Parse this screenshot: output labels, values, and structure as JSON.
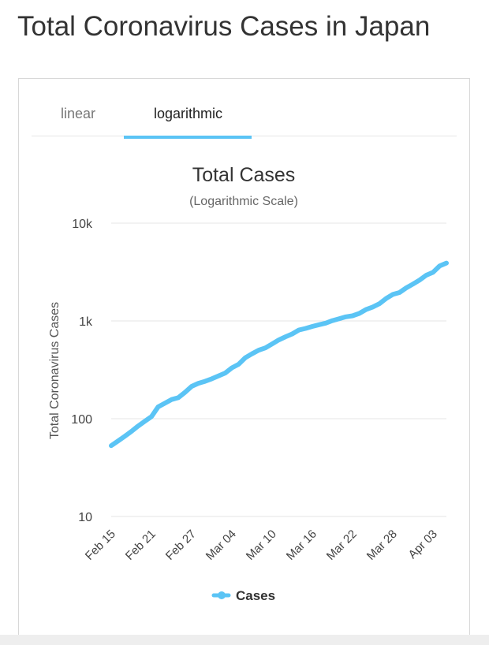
{
  "page": {
    "title": "Total Coronavirus Cases in Japan"
  },
  "tabs": [
    {
      "label": "linear",
      "active": false
    },
    {
      "label": "logarithmic",
      "active": true
    }
  ],
  "colors": {
    "accent": "#5bc4f5",
    "series": "#5bc4f5",
    "grid": "#e6e6e6",
    "text": "#333333"
  },
  "chart_data": {
    "type": "line",
    "title": "Total Cases",
    "subtitle": "(Logarithmic Scale)",
    "xlabel": "",
    "ylabel": "Total Coronavirus Cases",
    "yscale": "log",
    "ylim": [
      10,
      10000
    ],
    "y_ticks": [
      {
        "value": 10,
        "label": "10"
      },
      {
        "value": 100,
        "label": "100"
      },
      {
        "value": 1000,
        "label": "1k"
      },
      {
        "value": 10000,
        "label": "10k"
      }
    ],
    "x_tick_labels": [
      "Feb 15",
      "Feb 21",
      "Feb 27",
      "Mar 04",
      "Mar 10",
      "Mar 16",
      "Mar 22",
      "Mar 28",
      "Apr 03"
    ],
    "grid": true,
    "legend": {
      "position": "bottom-center",
      "label": "Cases"
    },
    "series": [
      {
        "name": "Cases",
        "x": [
          "Feb 15",
          "Feb 16",
          "Feb 17",
          "Feb 18",
          "Feb 19",
          "Feb 20",
          "Feb 21",
          "Feb 22",
          "Feb 23",
          "Feb 24",
          "Feb 25",
          "Feb 26",
          "Feb 27",
          "Feb 28",
          "Feb 29",
          "Mar 01",
          "Mar 02",
          "Mar 03",
          "Mar 04",
          "Mar 05",
          "Mar 06",
          "Mar 07",
          "Mar 08",
          "Mar 09",
          "Mar 10",
          "Mar 11",
          "Mar 12",
          "Mar 13",
          "Mar 14",
          "Mar 15",
          "Mar 16",
          "Mar 17",
          "Mar 18",
          "Mar 19",
          "Mar 20",
          "Mar 21",
          "Mar 22",
          "Mar 23",
          "Mar 24",
          "Mar 25",
          "Mar 26",
          "Mar 27",
          "Mar 28",
          "Mar 29",
          "Mar 30",
          "Mar 31",
          "Apr 01",
          "Apr 02",
          "Apr 03",
          "Apr 04",
          "Apr 05"
        ],
        "values": [
          53,
          59,
          66,
          74,
          84,
          94,
          105,
          132,
          144,
          157,
          164,
          186,
          214,
          230,
          241,
          256,
          274,
          293,
          331,
          360,
          420,
          461,
          502,
          530,
          581,
          639,
          689,
          736,
          808,
          839,
          878,
          914,
          950,
          1007,
          1054,
          1101,
          1128,
          1193,
          1307,
          1387,
          1499,
          1693,
          1866,
          1953,
          2178,
          2381,
          2617,
          2935,
          3139,
          3654,
          3906
        ]
      }
    ]
  }
}
